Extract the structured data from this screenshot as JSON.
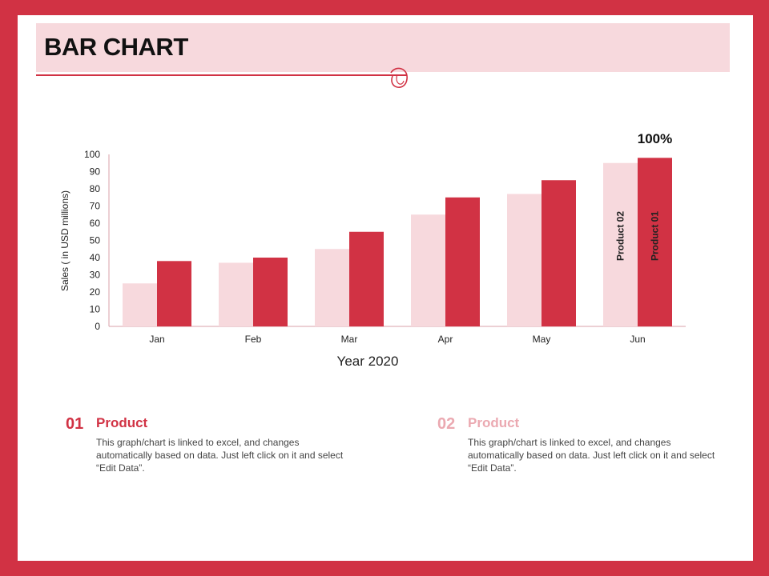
{
  "header": {
    "title": "BAR CHART"
  },
  "colors": {
    "frame": "#d13244",
    "product01": "#d13244",
    "product02": "#f7d9dd",
    "band": "#f7d9dd"
  },
  "chart_data": {
    "type": "bar",
    "title": "",
    "xlabel": "Year 2020",
    "ylabel": "Sales   ( in USD millions)",
    "ylim": [
      0,
      100
    ],
    "yticks": [
      0,
      10,
      20,
      30,
      40,
      50,
      60,
      70,
      80,
      90,
      100
    ],
    "categories": [
      "Jan",
      "Feb",
      "Mar",
      "Apr",
      "May",
      "Jun"
    ],
    "series": [
      {
        "name": "Product 02",
        "values": [
          25,
          37,
          45,
          65,
          77,
          95
        ]
      },
      {
        "name": "Product 01",
        "values": [
          38,
          40,
          55,
          75,
          85,
          98
        ]
      }
    ],
    "annotation": "100%"
  },
  "legend": [
    {
      "number": "01",
      "heading": "Product",
      "text": "This graph/chart is linked to excel, and changes automatically based on data. Just left click on it and select “Edit Data”."
    },
    {
      "number": "02",
      "heading": "Product",
      "text": "This graph/chart is linked to excel, and changes automatically based on data. Just left click on it and select “Edit Data”."
    }
  ]
}
